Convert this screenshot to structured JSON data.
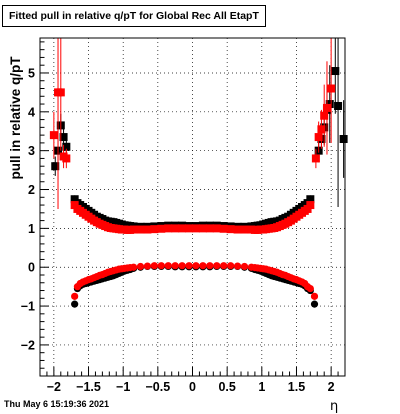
{
  "timestamp": "Thu May  6 15:19:36 2021",
  "chart_data": {
    "type": "scatter",
    "title": "Fitted pull in relative q/pT for Global Rec All EtapT",
    "xlabel": "η",
    "ylabel": "pull in relative q/pT",
    "xlim": [
      -2.2,
      2.2
    ],
    "ylim": [
      -2.8,
      5.9
    ],
    "xticks": [
      "−2",
      "−1.5",
      "−1",
      "−0.5",
      "0",
      "0.5",
      "1",
      "1.5",
      "2"
    ],
    "yticks": [
      "−2",
      "−1",
      "0",
      "1",
      "2",
      "3",
      "4",
      "5"
    ],
    "grid": true,
    "series": [
      {
        "color": "#000000",
        "marker": "square",
        "x": [
          -1.98,
          -1.94,
          -1.9,
          -1.86,
          -1.82,
          -1.7,
          -1.66,
          -1.62,
          -1.58,
          -1.54,
          -1.5,
          -1.46,
          -1.42,
          -1.38,
          -1.34,
          -1.3,
          -1.26,
          -1.22,
          -1.18,
          -1.14,
          -1.1,
          -1.06,
          -1.02,
          -0.98,
          -0.94,
          -0.9,
          -0.85,
          -0.75,
          -0.65,
          -0.55,
          -0.45,
          -0.35,
          -0.25,
          -0.15,
          -0.05,
          0.05,
          0.15,
          0.25,
          0.35,
          0.45,
          0.55,
          0.65,
          0.75,
          0.85,
          0.9,
          0.94,
          0.98,
          1.02,
          1.06,
          1.1,
          1.14,
          1.18,
          1.22,
          1.26,
          1.3,
          1.34,
          1.38,
          1.42,
          1.46,
          1.5,
          1.54,
          1.58,
          1.62,
          1.66,
          1.7,
          1.82,
          1.86,
          1.9,
          1.94,
          1.98,
          2.06,
          2.1,
          2.18
        ],
        "y": [
          2.6,
          3.0,
          3.65,
          3.35,
          3.1,
          1.75,
          1.65,
          1.6,
          1.55,
          1.5,
          1.45,
          1.4,
          1.35,
          1.3,
          1.27,
          1.24,
          1.2,
          1.18,
          1.17,
          1.16,
          1.14,
          1.12,
          1.1,
          1.08,
          1.07,
          1.06,
          1.05,
          1.04,
          1.04,
          1.05,
          1.06,
          1.07,
          1.07,
          1.07,
          1.06,
          1.06,
          1.07,
          1.07,
          1.07,
          1.06,
          1.05,
          1.04,
          1.04,
          1.05,
          1.06,
          1.07,
          1.08,
          1.1,
          1.12,
          1.14,
          1.16,
          1.17,
          1.18,
          1.2,
          1.24,
          1.27,
          1.3,
          1.35,
          1.4,
          1.45,
          1.5,
          1.55,
          1.6,
          1.65,
          1.75,
          3.0,
          3.3,
          3.6,
          4.05,
          4.2,
          5.05,
          4.15,
          3.3
        ],
        "yerr": [
          0.25,
          0.5,
          0.3,
          0.35,
          0.3,
          0.1,
          0.05,
          0.04,
          0.04,
          0.03,
          0.03,
          0.03,
          0.02,
          0.02,
          0.02,
          0.02,
          0.02,
          0.02,
          0.02,
          0.02,
          0.02,
          0.02,
          0.02,
          0.02,
          0.02,
          0.02,
          0.02,
          0.02,
          0.02,
          0.02,
          0.02,
          0.02,
          0.02,
          0.02,
          0.02,
          0.02,
          0.02,
          0.02,
          0.02,
          0.02,
          0.02,
          0.02,
          0.02,
          0.02,
          0.02,
          0.02,
          0.02,
          0.02,
          0.02,
          0.02,
          0.02,
          0.02,
          0.02,
          0.02,
          0.02,
          0.02,
          0.02,
          0.03,
          0.03,
          0.03,
          0.04,
          0.04,
          0.05,
          0.05,
          0.1,
          0.3,
          0.35,
          0.45,
          0.6,
          1.0,
          1.1,
          2.6,
          1.0
        ]
      },
      {
        "color": "#000000",
        "marker": "circle",
        "x": [
          -1.7,
          -1.66,
          -1.62,
          -1.58,
          -1.54,
          -1.5,
          -1.46,
          -1.42,
          -1.38,
          -1.34,
          -1.3,
          -1.26,
          -1.22,
          -1.18,
          -1.14,
          -1.1,
          -1.06,
          -1.02,
          -0.98,
          -0.94,
          -0.9,
          -0.85,
          -0.75,
          -0.65,
          -0.55,
          -0.45,
          -0.35,
          -0.25,
          -0.15,
          -0.05,
          0.05,
          0.15,
          0.25,
          0.35,
          0.45,
          0.55,
          0.65,
          0.75,
          0.85,
          0.9,
          0.94,
          0.98,
          1.02,
          1.06,
          1.1,
          1.14,
          1.18,
          1.22,
          1.26,
          1.3,
          1.34,
          1.38,
          1.42,
          1.46,
          1.5,
          1.54,
          1.58,
          1.62,
          1.66,
          1.7,
          1.76
        ],
        "y": [
          -0.95,
          -0.55,
          -0.48,
          -0.44,
          -0.42,
          -0.4,
          -0.38,
          -0.36,
          -0.34,
          -0.32,
          -0.3,
          -0.28,
          -0.26,
          -0.24,
          -0.22,
          -0.19,
          -0.16,
          -0.13,
          -0.1,
          -0.08,
          -0.06,
          -0.03,
          0.0,
          0.02,
          0.02,
          0.02,
          0.02,
          0.01,
          0.01,
          0.01,
          0.01,
          0.01,
          0.01,
          0.02,
          0.02,
          0.02,
          0.02,
          0.0,
          -0.03,
          -0.06,
          -0.08,
          -0.1,
          -0.13,
          -0.16,
          -0.19,
          -0.22,
          -0.24,
          -0.26,
          -0.28,
          -0.3,
          -0.32,
          -0.34,
          -0.36,
          -0.38,
          -0.4,
          -0.42,
          -0.44,
          -0.48,
          -0.55,
          -0.6,
          -0.95
        ],
        "yerr": [
          0.05,
          0.04,
          0.03,
          0.03,
          0.02,
          0.02,
          0.02,
          0.02,
          0.02,
          0.02,
          0.02,
          0.02,
          0.02,
          0.02,
          0.02,
          0.02,
          0.02,
          0.02,
          0.02,
          0.02,
          0.02,
          0.02,
          0.02,
          0.02,
          0.02,
          0.02,
          0.02,
          0.02,
          0.02,
          0.02,
          0.02,
          0.02,
          0.02,
          0.02,
          0.02,
          0.02,
          0.02,
          0.02,
          0.02,
          0.02,
          0.02,
          0.02,
          0.02,
          0.02,
          0.02,
          0.02,
          0.02,
          0.02,
          0.02,
          0.02,
          0.02,
          0.02,
          0.02,
          0.02,
          0.02,
          0.02,
          0.03,
          0.03,
          0.04,
          0.04,
          0.05
        ]
      },
      {
        "color": "#ff0000",
        "marker": "square",
        "x": [
          -2.0,
          -1.94,
          -1.9,
          -1.86,
          -1.82,
          -1.7,
          -1.66,
          -1.62,
          -1.58,
          -1.54,
          -1.5,
          -1.46,
          -1.42,
          -1.38,
          -1.34,
          -1.3,
          -1.26,
          -1.22,
          -1.18,
          -1.14,
          -1.1,
          -1.06,
          -1.02,
          -0.98,
          -0.94,
          -0.9,
          -0.85,
          -0.75,
          -0.65,
          -0.55,
          -0.45,
          -0.35,
          -0.25,
          -0.15,
          -0.05,
          0.05,
          0.15,
          0.25,
          0.35,
          0.45,
          0.55,
          0.65,
          0.75,
          0.85,
          0.9,
          0.94,
          0.98,
          1.02,
          1.06,
          1.1,
          1.14,
          1.18,
          1.22,
          1.26,
          1.3,
          1.34,
          1.38,
          1.42,
          1.46,
          1.5,
          1.54,
          1.58,
          1.62,
          1.66,
          1.7,
          1.78,
          1.82,
          1.86,
          1.9,
          1.94,
          2.0
        ],
        "y": [
          3.4,
          4.5,
          4.5,
          2.85,
          2.8,
          1.6,
          1.5,
          1.45,
          1.4,
          1.35,
          1.3,
          1.25,
          1.2,
          1.16,
          1.12,
          1.09,
          1.06,
          1.03,
          1.01,
          1.0,
          0.99,
          0.98,
          0.97,
          0.97,
          0.96,
          0.96,
          0.97,
          0.97,
          0.97,
          0.98,
          0.99,
          1.0,
          1.0,
          1.0,
          1.0,
          1.0,
          1.0,
          1.0,
          1.0,
          0.99,
          0.98,
          0.97,
          0.97,
          0.97,
          0.96,
          0.96,
          0.97,
          0.97,
          0.98,
          0.99,
          1.0,
          1.01,
          1.03,
          1.06,
          1.09,
          1.12,
          1.16,
          1.2,
          1.25,
          1.3,
          1.35,
          1.4,
          1.45,
          1.5,
          1.6,
          2.8,
          3.35,
          3.55,
          3.9,
          4.1,
          4.6
        ],
        "yerr": [
          0.6,
          3.0,
          1.5,
          0.3,
          0.25,
          0.08,
          0.05,
          0.04,
          0.04,
          0.03,
          0.03,
          0.03,
          0.02,
          0.02,
          0.02,
          0.02,
          0.02,
          0.02,
          0.02,
          0.02,
          0.02,
          0.02,
          0.02,
          0.02,
          0.02,
          0.02,
          0.02,
          0.02,
          0.02,
          0.02,
          0.02,
          0.02,
          0.02,
          0.02,
          0.02,
          0.02,
          0.02,
          0.02,
          0.02,
          0.02,
          0.02,
          0.02,
          0.02,
          0.02,
          0.02,
          0.02,
          0.02,
          0.02,
          0.02,
          0.02,
          0.02,
          0.02,
          0.02,
          0.02,
          0.02,
          0.02,
          0.02,
          0.02,
          0.03,
          0.03,
          0.03,
          0.04,
          0.04,
          0.05,
          0.08,
          0.25,
          0.4,
          0.5,
          0.8,
          1.2,
          1.4
        ]
      },
      {
        "color": "#ff0000",
        "marker": "circle",
        "x": [
          -1.7,
          -1.66,
          -1.62,
          -1.58,
          -1.54,
          -1.5,
          -1.46,
          -1.42,
          -1.38,
          -1.34,
          -1.3,
          -1.26,
          -1.22,
          -1.18,
          -1.14,
          -1.1,
          -1.06,
          -1.02,
          -0.98,
          -0.94,
          -0.9,
          -0.85,
          -0.75,
          -0.65,
          -0.55,
          -0.45,
          -0.35,
          -0.25,
          -0.15,
          -0.05,
          0.05,
          0.15,
          0.25,
          0.35,
          0.45,
          0.55,
          0.65,
          0.75,
          0.85,
          0.9,
          0.94,
          0.98,
          1.02,
          1.06,
          1.1,
          1.14,
          1.18,
          1.22,
          1.26,
          1.3,
          1.34,
          1.38,
          1.42,
          1.46,
          1.5,
          1.54,
          1.58,
          1.62,
          1.66,
          1.7,
          1.76
        ],
        "y": [
          -0.75,
          -0.5,
          -0.42,
          -0.38,
          -0.35,
          -0.32,
          -0.3,
          -0.27,
          -0.24,
          -0.21,
          -0.19,
          -0.16,
          -0.13,
          -0.11,
          -0.09,
          -0.07,
          -0.05,
          -0.04,
          -0.03,
          -0.02,
          -0.01,
          0.0,
          0.02,
          0.03,
          0.04,
          0.04,
          0.04,
          0.04,
          0.04,
          0.04,
          0.04,
          0.04,
          0.04,
          0.04,
          0.04,
          0.04,
          0.03,
          0.02,
          0.0,
          -0.01,
          -0.02,
          -0.03,
          -0.04,
          -0.05,
          -0.07,
          -0.09,
          -0.11,
          -0.13,
          -0.16,
          -0.19,
          -0.21,
          -0.24,
          -0.27,
          -0.3,
          -0.32,
          -0.35,
          -0.38,
          -0.42,
          -0.5,
          -0.55,
          -0.75
        ],
        "yerr": [
          0.05,
          0.04,
          0.03,
          0.03,
          0.02,
          0.02,
          0.02,
          0.02,
          0.02,
          0.02,
          0.02,
          0.02,
          0.02,
          0.02,
          0.02,
          0.02,
          0.02,
          0.02,
          0.02,
          0.02,
          0.02,
          0.02,
          0.02,
          0.02,
          0.02,
          0.02,
          0.02,
          0.02,
          0.02,
          0.02,
          0.02,
          0.02,
          0.02,
          0.02,
          0.02,
          0.02,
          0.02,
          0.02,
          0.02,
          0.02,
          0.02,
          0.02,
          0.02,
          0.02,
          0.02,
          0.02,
          0.02,
          0.02,
          0.02,
          0.02,
          0.02,
          0.02,
          0.02,
          0.02,
          0.02,
          0.02,
          0.03,
          0.03,
          0.04,
          0.04,
          0.05
        ]
      }
    ]
  }
}
